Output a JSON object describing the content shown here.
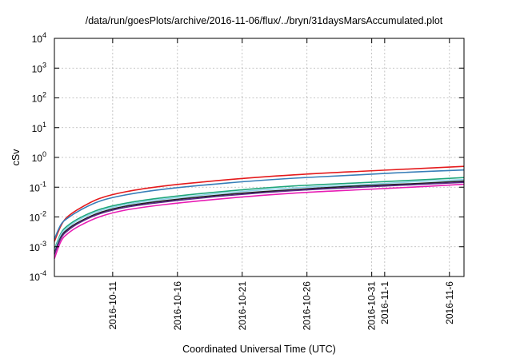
{
  "chart_data": {
    "type": "line",
    "title": "/data/run/goesPlots/archive/2016-11-06/flux/../bryn/31daysMarsAccumulated.plot",
    "xlabel": "Coordinated Universal Time (UTC)",
    "ylabel": "cSv",
    "yscale": "log",
    "ylim": [
      0.0001,
      10000
    ],
    "yticks": [
      {
        "base": "10",
        "exp": "-4",
        "value": 0.0001
      },
      {
        "base": "10",
        "exp": "-3",
        "value": 0.001
      },
      {
        "base": "10",
        "exp": "-2",
        "value": 0.01
      },
      {
        "base": "10",
        "exp": "-1",
        "value": 0.1
      },
      {
        "base": "10",
        "exp": "0",
        "value": 1
      },
      {
        "base": "10",
        "exp": "1",
        "value": 10
      },
      {
        "base": "10",
        "exp": "2",
        "value": 100
      },
      {
        "base": "10",
        "exp": "3",
        "value": 1000
      },
      {
        "base": "10",
        "exp": "4",
        "value": 10000
      }
    ],
    "xlim": [
      "2016-10-06T12:00",
      "2016-11-07T03:00"
    ],
    "xticks": [
      {
        "label": "2016-10-11",
        "date": "2016-10-11"
      },
      {
        "label": "2016-10-16",
        "date": "2016-10-16"
      },
      {
        "label": "2016-10-21",
        "date": "2016-10-21"
      },
      {
        "label": "2016-10-26",
        "date": "2016-10-26"
      },
      {
        "label": "2016-10-31",
        "date": "2016-10-31"
      },
      {
        "label": "2016-11-1",
        "date": "2016-11-01"
      },
      {
        "label": "2016-11-6",
        "date": "2016-11-06"
      }
    ],
    "grid": true,
    "legend": "none",
    "x": [
      "2016-10-06T12:00",
      "2016-10-07T00:00",
      "2016-10-07T12:00",
      "2016-10-08T12:00",
      "2016-10-10T00:00",
      "2016-10-12T00:00",
      "2016-10-15T00:00",
      "2016-10-20T00:00",
      "2016-10-25T00:00",
      "2016-10-30T00:00",
      "2016-11-03T00:00",
      "2016-11-07T03:00"
    ],
    "series": [
      {
        "color": "#e41a1c",
        "values": [
          0.0015,
          0.005,
          0.01,
          0.02,
          0.042,
          0.07,
          0.11,
          0.18,
          0.26,
          0.34,
          0.41,
          0.5
        ]
      },
      {
        "color": "#377eb8",
        "values": [
          0.0018,
          0.0055,
          0.009,
          0.017,
          0.034,
          0.055,
          0.086,
          0.14,
          0.2,
          0.26,
          0.32,
          0.38
        ]
      },
      {
        "color": "#1fa67a",
        "values": [
          0.0008,
          0.0028,
          0.005,
          0.0095,
          0.018,
          0.029,
          0.045,
          0.075,
          0.11,
          0.14,
          0.17,
          0.21
        ]
      },
      {
        "color": "#8fd3ea",
        "values": [
          0.0007,
          0.0025,
          0.0044,
          0.0085,
          0.016,
          0.026,
          0.04,
          0.066,
          0.095,
          0.12,
          0.15,
          0.18
        ]
      },
      {
        "color": "#222222",
        "values": [
          0.0006,
          0.0021,
          0.0038,
          0.0072,
          0.014,
          0.023,
          0.035,
          0.058,
          0.083,
          0.11,
          0.13,
          0.16
        ]
      },
      {
        "color": "#5b2a86",
        "values": [
          0.00055,
          0.0019,
          0.0034,
          0.0066,
          0.0128,
          0.021,
          0.032,
          0.053,
          0.077,
          0.1,
          0.12,
          0.145
        ]
      },
      {
        "color": "#e81cb4",
        "values": [
          0.0004,
          0.0015,
          0.0027,
          0.0052,
          0.0102,
          0.017,
          0.026,
          0.043,
          0.063,
          0.082,
          0.1,
          0.125
        ]
      }
    ]
  }
}
